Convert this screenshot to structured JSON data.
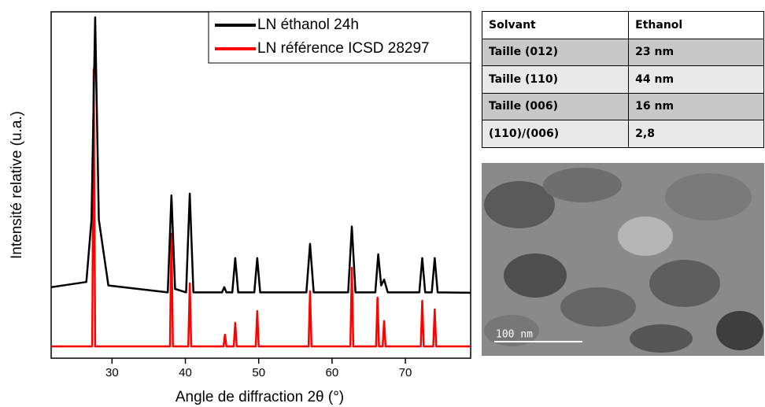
{
  "chart_data": {
    "type": "line",
    "xlabel": "Angle de diffraction 2θ (°)",
    "ylabel": "Intensité relative (u.a.)",
    "xlim": [
      21.7,
      78.9
    ],
    "xticks": [
      30,
      40,
      50,
      60,
      70
    ],
    "ylim": [
      0,
      100
    ],
    "legend": "upper right",
    "series": [
      {
        "name": "LN éthanol 24h",
        "color": "#000000",
        "x": [
          21.7,
          26.5,
          27.2,
          27.7,
          28.2,
          29.5,
          37.6,
          38.1,
          38.6,
          40.1,
          40.6,
          41.1,
          45.0,
          45.3,
          45.6,
          46.4,
          46.8,
          47.2,
          49.4,
          49.8,
          50.2,
          56.5,
          57.0,
          57.5,
          62.2,
          62.7,
          63.2,
          65.9,
          66.3,
          66.7,
          67.1,
          67.6,
          71.9,
          72.3,
          72.7,
          73.6,
          74.0,
          74.4,
          78.9
        ],
        "values": [
          20.5,
          22,
          40,
          98.4,
          40,
          21,
          19,
          47,
          20,
          19,
          47.5,
          19,
          19,
          20.5,
          19,
          19,
          28.9,
          19,
          19,
          28.9,
          19,
          19,
          33,
          19,
          19,
          38,
          19,
          19,
          30,
          21,
          22.7,
          19,
          19,
          28.9,
          19,
          19,
          28.9,
          19,
          18.9
        ]
      },
      {
        "name": "LN référence ICSD 28297",
        "color": "#ff0000",
        "x": [
          21.7,
          27.3,
          27.5,
          27.7,
          37.9,
          38.1,
          38.3,
          40.4,
          40.6,
          40.8,
          45.2,
          45.4,
          45.6,
          46.6,
          46.8,
          47.0,
          49.6,
          49.8,
          50.0,
          56.8,
          57.0,
          57.2,
          62.5,
          62.7,
          62.9,
          66.0,
          66.2,
          66.4,
          66.9,
          67.1,
          67.3,
          72.1,
          72.3,
          72.5,
          73.8,
          74.0,
          74.2,
          78.9
        ],
        "values": [
          3.4,
          3.4,
          83.4,
          3.4,
          3.4,
          36,
          3.4,
          3.4,
          21.6,
          3.4,
          3.4,
          6.8,
          3.4,
          3.4,
          10.2,
          3.4,
          3.4,
          13.6,
          3.4,
          3.4,
          19.3,
          3.4,
          3.4,
          26.1,
          3.4,
          3.4,
          17.5,
          3.4,
          3.4,
          10.7,
          3.4,
          3.4,
          16.6,
          3.4,
          3.4,
          14.1,
          3.4,
          3.4
        ]
      }
    ]
  },
  "table": {
    "rows": [
      [
        "Solvant",
        "Ethanol"
      ],
      [
        "Taille (012)",
        "23 nm"
      ],
      [
        "Taille (110)",
        "44 nm"
      ],
      [
        "Taille (006)",
        "16 nm"
      ],
      [
        "(110)/(006)",
        "2,8"
      ]
    ]
  },
  "image": {
    "scale_bar": "100 nm"
  }
}
